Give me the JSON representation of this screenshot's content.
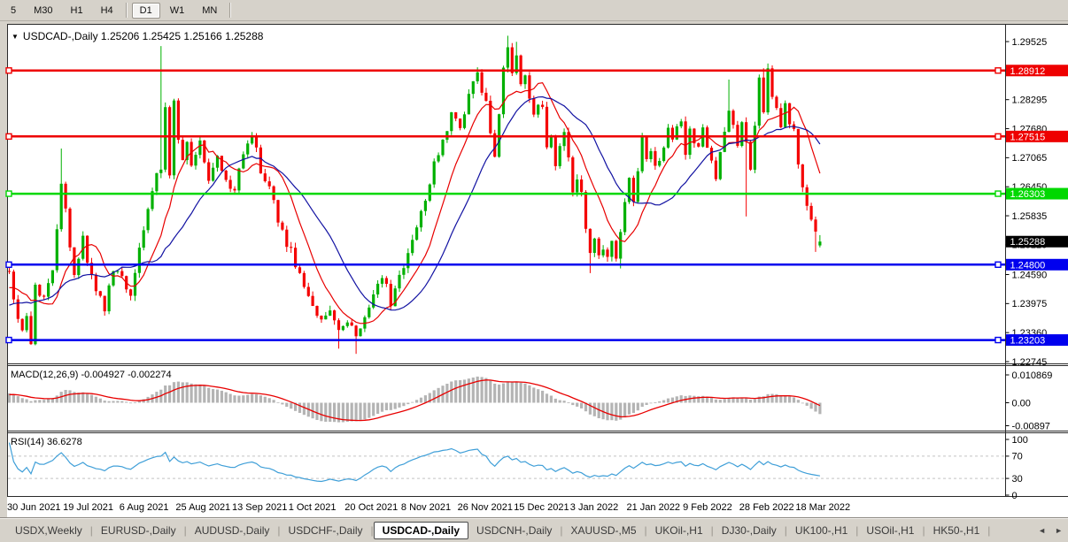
{
  "toolbar": {
    "timeframes": [
      "5",
      "M30",
      "H1",
      "H4",
      "D1",
      "W1",
      "MN"
    ],
    "active": "D1",
    "separators_after": [
      "H4",
      "MN"
    ]
  },
  "chart_data": {
    "type": "candlestick",
    "symbol": "USDCAD-",
    "timeframe": "Daily",
    "title": "USDCAD-,Daily  1.25206 1.25425 1.25166 1.25288",
    "dropdown_icon": "▼",
    "last_candle": {
      "open": 1.25206,
      "high": 1.25425,
      "low": 1.25166,
      "close": 1.25288
    },
    "price_range": {
      "top": 1.298815,
      "bottom": 1.227265
    },
    "price_axis_ticks": [
      {
        "label": "1.29525",
        "value": 1.29525
      },
      {
        "label": "1.28295",
        "value": 1.28295
      },
      {
        "label": "1.27680",
        "value": 1.2768
      },
      {
        "label": "1.27065",
        "value": 1.27065
      },
      {
        "label": "1.26450",
        "value": 1.2645
      },
      {
        "label": "1.25835",
        "value": 1.25835
      },
      {
        "label": "1.25220",
        "value": 1.2522
      },
      {
        "label": "1.24590",
        "value": 1.2459
      },
      {
        "label": "1.23975",
        "value": 1.23975
      },
      {
        "label": "1.23360",
        "value": 1.2336
      },
      {
        "label": "1.22745",
        "value": 1.22745
      }
    ],
    "horizontal_levels": [
      {
        "price": 1.28912,
        "label": "1.28912",
        "color": "#ee0000",
        "line": true,
        "role": "resistance"
      },
      {
        "price": 1.27515,
        "label": "1.27515",
        "color": "#ee0000",
        "line": true,
        "role": "resistance"
      },
      {
        "price": 1.26303,
        "label": "1.26303",
        "color": "#00d800",
        "line": true,
        "role": "pivot"
      },
      {
        "price": 1.25288,
        "label": "1.25288",
        "color": "#000000",
        "line": false,
        "role": "current-price"
      },
      {
        "price": 1.248,
        "label": "1.24800",
        "color": "#0000ee",
        "line": true,
        "role": "support"
      },
      {
        "price": 1.23203,
        "label": "1.23203",
        "color": "#0000ee",
        "line": true,
        "role": "support"
      }
    ],
    "x_axis_labels": [
      {
        "bar": 0,
        "text": "30 Jun 2021"
      },
      {
        "bar": 13,
        "text": "19 Jul 2021"
      },
      {
        "bar": 26,
        "text": "6 Aug 2021"
      },
      {
        "bar": 39,
        "text": "25 Aug 2021"
      },
      {
        "bar": 52,
        "text": "13 Sep 2021"
      },
      {
        "bar": 65,
        "text": "1 Oct 2021"
      },
      {
        "bar": 78,
        "text": "20 Oct 2021"
      },
      {
        "bar": 91,
        "text": "8 Nov 2021"
      },
      {
        "bar": 104,
        "text": "26 Nov 2021"
      },
      {
        "bar": 117,
        "text": "15 Dec 2021"
      },
      {
        "bar": 130,
        "text": "3 Jan 2022"
      },
      {
        "bar": 143,
        "text": "21 Jan 2022"
      },
      {
        "bar": 156,
        "text": "9 Feb 2022"
      },
      {
        "bar": 169,
        "text": "28 Feb 2022"
      },
      {
        "bar": 182,
        "text": "18 Mar 2022"
      }
    ],
    "moving_averages": [
      {
        "period": 10,
        "color": "#e80000"
      },
      {
        "period": 21,
        "color": "#1212a2"
      }
    ],
    "macd": {
      "label": "MACD(12,26,9) -0.004927 -0.002274",
      "params": [
        12,
        26,
        9
      ],
      "main_value": -0.004927,
      "signal_value": -0.002274,
      "axis_ticks": [
        {
          "label": "0.010869",
          "value": 0.010869
        },
        {
          "label": "0.00",
          "value": 0
        },
        {
          "label": "-0.00897",
          "value": -0.00897
        }
      ]
    },
    "rsi": {
      "label": "RSI(14) 36.6278",
      "period": 14,
      "value": 36.6278,
      "axis_ticks": [
        {
          "label": "100",
          "value": 100
        },
        {
          "label": "70",
          "value": 70
        },
        {
          "label": "30",
          "value": 30
        },
        {
          "label": "0",
          "value": 0
        }
      ],
      "dashed_levels": [
        70,
        30
      ]
    },
    "colors": {
      "bull": "#00b000",
      "bear": "#f40000",
      "macd_hist": "#b4b4b4",
      "macd_signal": "#e80000",
      "rsi_line": "#3f9fd8",
      "dashed_level": "#c4c4c4",
      "frame": "#2a2a2a",
      "badge_text": "#ffffff"
    },
    "series_synthesis": {
      "bars": 188,
      "seed": 7,
      "close_noise": 0.0022,
      "wick": 0.0011,
      "preroll": {
        "count": 26,
        "from": 1.2285
      },
      "anchors": [
        [
          0,
          1.2455
        ],
        [
          1,
          1.2408
        ],
        [
          3,
          1.2338
        ],
        [
          4,
          1.2362
        ],
        [
          5,
          1.2322
        ],
        [
          6,
          1.2438
        ],
        [
          8,
          1.2405
        ],
        [
          10,
          1.2472
        ],
        [
          12,
          1.2648
        ],
        [
          13,
          1.2598
        ],
        [
          15,
          1.2452
        ],
        [
          17,
          1.2532
        ],
        [
          19,
          1.2448
        ],
        [
          22,
          1.2388
        ],
        [
          24,
          1.2462
        ],
        [
          26,
          1.2452
        ],
        [
          28,
          1.2418
        ],
        [
          30,
          1.2522
        ],
        [
          32,
          1.2598
        ],
        [
          34,
          1.2675
        ],
        [
          35,
          1.2682
        ],
        [
          36,
          1.2822
        ],
        [
          37,
          1.2675
        ],
        [
          38,
          1.2818
        ],
        [
          39,
          1.2752
        ],
        [
          40,
          1.2702
        ],
        [
          41,
          1.2748
        ],
        [
          42,
          1.2692
        ],
        [
          44,
          1.2738
        ],
        [
          46,
          1.2662
        ],
        [
          48,
          1.2712
        ],
        [
          50,
          1.2658
        ],
        [
          52,
          1.2645
        ],
        [
          54,
          1.2712
        ],
        [
          56,
          1.2755
        ],
        [
          58,
          1.2682
        ],
        [
          60,
          1.2642
        ],
        [
          62,
          1.2575
        ],
        [
          64,
          1.2528
        ],
        [
          66,
          1.2482
        ],
        [
          68,
          1.2442
        ],
        [
          70,
          1.2388
        ],
        [
          72,
          1.2355
        ],
        [
          74,
          1.2382
        ],
        [
          76,
          1.2338
        ],
        [
          78,
          1.2368
        ],
        [
          80,
          1.2332
        ],
        [
          82,
          1.2372
        ],
        [
          84,
          1.2425
        ],
        [
          86,
          1.2455
        ],
        [
          88,
          1.2402
        ],
        [
          90,
          1.2462
        ],
        [
          92,
          1.2505
        ],
        [
          94,
          1.2562
        ],
        [
          96,
          1.2618
        ],
        [
          98,
          1.2702
        ],
        [
          100,
          1.2742
        ],
        [
          102,
          1.2802
        ],
        [
          104,
          1.2772
        ],
        [
          106,
          1.2842
        ],
        [
          108,
          1.2878
        ],
        [
          110,
          1.2832
        ],
        [
          111,
          1.2762
        ],
        [
          112,
          1.2702
        ],
        [
          113,
          1.2792
        ],
        [
          114,
          1.2905
        ],
        [
          115,
          1.2948
        ],
        [
          116,
          1.2882
        ],
        [
          117,
          1.2918
        ],
        [
          118,
          1.2852
        ],
        [
          119,
          1.2885
        ],
        [
          120,
          1.2822
        ],
        [
          121,
          1.2792
        ],
        [
          122,
          1.2828
        ],
        [
          123,
          1.2812
        ],
        [
          124,
          1.2732
        ],
        [
          125,
          1.2762
        ],
        [
          126,
          1.2682
        ],
        [
          127,
          1.2722
        ],
        [
          128,
          1.2762
        ],
        [
          129,
          1.2702
        ],
        [
          130,
          1.2642
        ],
        [
          131,
          1.2656
        ],
        [
          132,
          1.2628
        ],
        [
          133,
          1.2562
        ],
        [
          134,
          1.2502
        ],
        [
          135,
          1.2532
        ],
        [
          136,
          1.2492
        ],
        [
          137,
          1.2512
        ],
        [
          138,
          1.2488
        ],
        [
          139,
          1.2528
        ],
        [
          140,
          1.2498
        ],
        [
          141,
          1.2552
        ],
        [
          142,
          1.2612
        ],
        [
          143,
          1.2656
        ],
        [
          144,
          1.2622
        ],
        [
          145,
          1.2682
        ],
        [
          146,
          1.2752
        ],
        [
          147,
          1.2702
        ],
        [
          148,
          1.2722
        ],
        [
          149,
          1.2682
        ],
        [
          151,
          1.2722
        ],
        [
          152,
          1.2762
        ],
        [
          153,
          1.2742
        ],
        [
          155,
          1.2782
        ],
        [
          156,
          1.2722
        ],
        [
          157,
          1.2762
        ],
        [
          159,
          1.2722
        ],
        [
          160,
          1.2762
        ],
        [
          162,
          1.2702
        ],
        [
          163,
          1.2662
        ],
        [
          165,
          1.2762
        ],
        [
          166,
          1.2802
        ],
        [
          167,
          1.2772
        ],
        [
          168,
          1.2742
        ],
        [
          169,
          1.2772
        ],
        [
          170,
          1.2742
        ],
        [
          171,
          1.2682
        ],
        [
          172,
          1.2772
        ],
        [
          173,
          1.2885
        ],
        [
          174,
          1.2798
        ],
        [
          175,
          1.2885
        ],
        [
          176,
          1.2842
        ],
        [
          177,
          1.2802
        ],
        [
          178,
          1.2782
        ],
        [
          179,
          1.2812
        ],
        [
          180,
          1.2782
        ],
        [
          181,
          1.2762
        ],
        [
          182,
          1.2702
        ],
        [
          183,
          1.2648
        ],
        [
          184,
          1.2608
        ],
        [
          185,
          1.2572
        ],
        [
          186,
          1.2545
        ],
        [
          187,
          1.25288
        ]
      ],
      "spikes": [
        [
          12,
          "h",
          1.2726
        ],
        [
          35,
          "h",
          1.2943
        ],
        [
          76,
          "l",
          1.2302
        ],
        [
          80,
          "l",
          1.2291
        ],
        [
          115,
          "h",
          1.2965
        ],
        [
          117,
          "h",
          1.2952
        ],
        [
          134,
          "l",
          1.2462
        ],
        [
          141,
          "l",
          1.2472
        ],
        [
          166,
          "h",
          1.2872
        ],
        [
          170,
          "l",
          1.2582
        ],
        [
          174,
          "h",
          1.2896
        ],
        [
          186,
          "l",
          1.2507
        ]
      ]
    }
  },
  "tabs": {
    "items": [
      {
        "label": "USDX,Weekly",
        "active": false
      },
      {
        "label": "EURUSD-,Daily",
        "active": false
      },
      {
        "label": "AUDUSD-,Daily",
        "active": false
      },
      {
        "label": "USDCHF-,Daily",
        "active": false
      },
      {
        "label": "USDCAD-,Daily",
        "active": true
      },
      {
        "label": "USDCNH-,Daily",
        "active": false
      },
      {
        "label": "XAUUSD-,M5",
        "active": false
      },
      {
        "label": "UKOil-,H1",
        "active": false
      },
      {
        "label": "DJ30-,Daily",
        "active": false
      },
      {
        "label": "UK100-,H1",
        "active": false
      },
      {
        "label": "USOil-,H1",
        "active": false
      },
      {
        "label": "HK50-,H1",
        "active": false
      }
    ],
    "separator": "|",
    "scroll_left": "◄",
    "scroll_right": "►"
  }
}
